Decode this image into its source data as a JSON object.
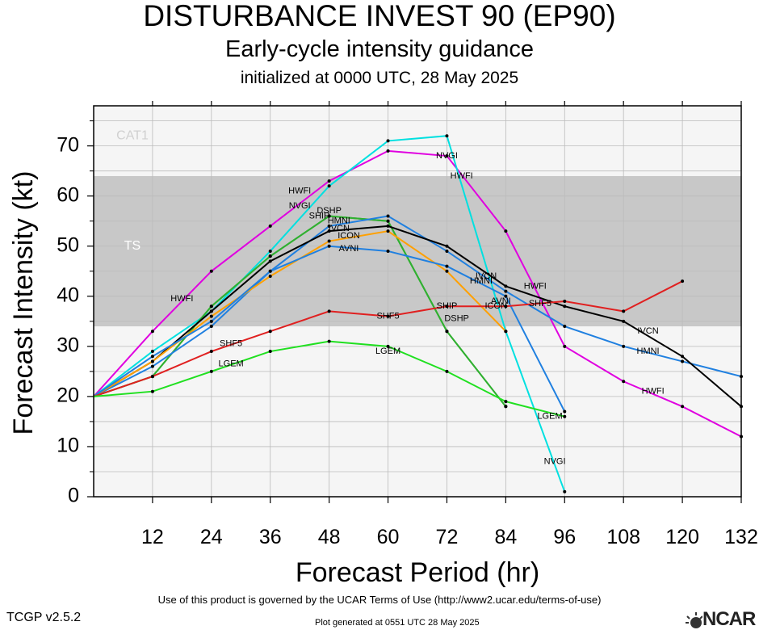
{
  "header": {
    "title": "DISTURBANCE INVEST 90 (EP90)",
    "subtitle": "Early-cycle intensity guidance",
    "initialized": "initialized at 0000 UTC, 28 May 2025"
  },
  "footer": {
    "terms": "Use of this product is governed by the UCAR Terms of Use (http://www2.ucar.edu/terms-of-use)",
    "version": "TCGP v2.5.2",
    "generated": "Plot generated at 0551 UTC   28 May 2025",
    "logo_text": "NCAR",
    "logo_icon": "ncar-sun-icon"
  },
  "chart_data": {
    "type": "line",
    "xlabel": "Forecast Period (hr)",
    "ylabel": "Forecast Intensity (kt)",
    "xlim": [
      0,
      132
    ],
    "ylim": [
      0,
      78
    ],
    "xticks": [
      12,
      24,
      36,
      48,
      60,
      72,
      84,
      96,
      108,
      120,
      132
    ],
    "yticks": [
      0,
      10,
      20,
      30,
      40,
      50,
      60,
      70
    ],
    "grid": true,
    "bands": [
      {
        "label": "TS",
        "from": 34,
        "to": 64,
        "color": "#c8c8c8"
      },
      {
        "label": "CAT1",
        "from": 64,
        "to": 78,
        "color": "#f5f5f5"
      }
    ],
    "below_band_color": "#f5f5f5",
    "series": [
      {
        "name": "HWFI",
        "color": "#e000e0",
        "x": [
          0,
          12,
          24,
          36,
          48,
          60,
          72,
          84,
          96,
          108,
          120,
          132
        ],
        "y": [
          20,
          33,
          45,
          54,
          63,
          69,
          68,
          53,
          30,
          23,
          18,
          12
        ]
      },
      {
        "name": "NVGI",
        "color": "#00e0e0",
        "x": [
          0,
          12,
          24,
          36,
          48,
          60,
          72,
          84,
          96
        ],
        "y": [
          20,
          29,
          37,
          49,
          62,
          71,
          72,
          33,
          1
        ]
      },
      {
        "name": "DSHP",
        "color": "#30b030",
        "x": [
          0,
          12,
          24,
          36,
          48,
          60,
          72,
          84
        ],
        "y": [
          20,
          24,
          38,
          48,
          56,
          55,
          33,
          18
        ]
      },
      {
        "name": "SHIP",
        "color": "#30b030",
        "x": [
          0,
          12,
          24,
          36,
          48,
          60,
          72,
          84
        ],
        "y": [
          20,
          24,
          38,
          48,
          56,
          55,
          33,
          18
        ]
      },
      {
        "name": "HMNI",
        "color": "#2080e0",
        "x": [
          0,
          12,
          24,
          36,
          48,
          60,
          72,
          84,
          96,
          108,
          120,
          132
        ],
        "y": [
          20,
          26,
          34,
          45,
          54,
          56,
          49,
          41,
          34,
          30,
          27,
          24
        ]
      },
      {
        "name": "IVCN",
        "color": "#000000",
        "x": [
          0,
          12,
          24,
          36,
          48,
          60,
          72,
          84,
          96,
          108,
          120,
          132
        ],
        "y": [
          20,
          27,
          37,
          47,
          53,
          54,
          50,
          42,
          38,
          35,
          28,
          18
        ]
      },
      {
        "name": "ICON",
        "color": "#ffa000",
        "x": [
          0,
          12,
          24,
          36,
          48,
          60,
          72,
          84
        ],
        "y": [
          20,
          27,
          36,
          44,
          51,
          53,
          45,
          33
        ]
      },
      {
        "name": "AVNI",
        "color": "#2080e0",
        "x": [
          0,
          12,
          24,
          36,
          48,
          60,
          72,
          84,
          96
        ],
        "y": [
          20,
          28,
          35,
          45,
          50,
          49,
          46,
          40,
          17
        ]
      },
      {
        "name": "SHF5",
        "color": "#e02020",
        "x": [
          0,
          12,
          24,
          36,
          48,
          60,
          72,
          84,
          96,
          108,
          120
        ],
        "y": [
          20,
          24,
          29,
          33,
          37,
          36,
          38,
          38,
          39,
          37,
          43
        ]
      },
      {
        "name": "LGEM",
        "color": "#20e020",
        "x": [
          0,
          12,
          24,
          36,
          48,
          60,
          72,
          84,
          96
        ],
        "y": [
          20,
          21,
          25,
          29,
          31,
          30,
          25,
          19,
          16
        ]
      }
    ],
    "line_labels": [
      {
        "text": "HWFI",
        "x": 18,
        "y": 39.5,
        "series": "HWFI"
      },
      {
        "text": "HWFI",
        "x": 42,
        "y": 61,
        "series": "HWFI"
      },
      {
        "text": "HWFI",
        "x": 75,
        "y": 64,
        "series": "HWFI"
      },
      {
        "text": "HWFI",
        "x": 90,
        "y": 42,
        "series": "HWFI"
      },
      {
        "text": "HWFI",
        "x": 114,
        "y": 21,
        "series": "HWFI"
      },
      {
        "text": "NVGI",
        "x": 42,
        "y": 58,
        "series": "NVGI"
      },
      {
        "text": "NVGI",
        "x": 72,
        "y": 68,
        "series": "NVGI"
      },
      {
        "text": "NVGI",
        "x": 94,
        "y": 7,
        "series": "NVGI"
      },
      {
        "text": "SHIP",
        "x": 46,
        "y": 56,
        "series": "SHIP"
      },
      {
        "text": "DSHP",
        "x": 48,
        "y": 57,
        "series": "DSHP"
      },
      {
        "text": "SHIP",
        "x": 72,
        "y": 38,
        "series": "SHIP"
      },
      {
        "text": "DSHP",
        "x": 74,
        "y": 35.5,
        "series": "DSHP"
      },
      {
        "text": "HMNI",
        "x": 50,
        "y": 55,
        "series": "HMNI"
      },
      {
        "text": "HMNI",
        "x": 79,
        "y": 43,
        "series": "HMNI"
      },
      {
        "text": "HMNI",
        "x": 113,
        "y": 29,
        "series": "HMNI"
      },
      {
        "text": "IVCN",
        "x": 50,
        "y": 53.5,
        "series": "IVCN"
      },
      {
        "text": "IVCN",
        "x": 80,
        "y": 44,
        "series": "IVCN"
      },
      {
        "text": "IVCN",
        "x": 113,
        "y": 33,
        "series": "IVCN"
      },
      {
        "text": "ICON",
        "x": 52,
        "y": 52,
        "series": "ICON"
      },
      {
        "text": "ICON",
        "x": 82,
        "y": 38,
        "series": "ICON"
      },
      {
        "text": "AVNI",
        "x": 52,
        "y": 49.5,
        "series": "AVNI"
      },
      {
        "text": "AVNI",
        "x": 83,
        "y": 39,
        "series": "AVNI"
      },
      {
        "text": "SHF5",
        "x": 60,
        "y": 36,
        "series": "SHF5"
      },
      {
        "text": "SHF5",
        "x": 91,
        "y": 38.5,
        "series": "SHF5"
      },
      {
        "text": "SHF5",
        "x": 28,
        "y": 30.5,
        "series": "SHF5"
      },
      {
        "text": "LGEM",
        "x": 28,
        "y": 26.5,
        "series": "LGEM"
      },
      {
        "text": "LGEM",
        "x": 60,
        "y": 29,
        "series": "LGEM"
      },
      {
        "text": "LGEM",
        "x": 93,
        "y": 16,
        "series": "LGEM"
      }
    ]
  }
}
